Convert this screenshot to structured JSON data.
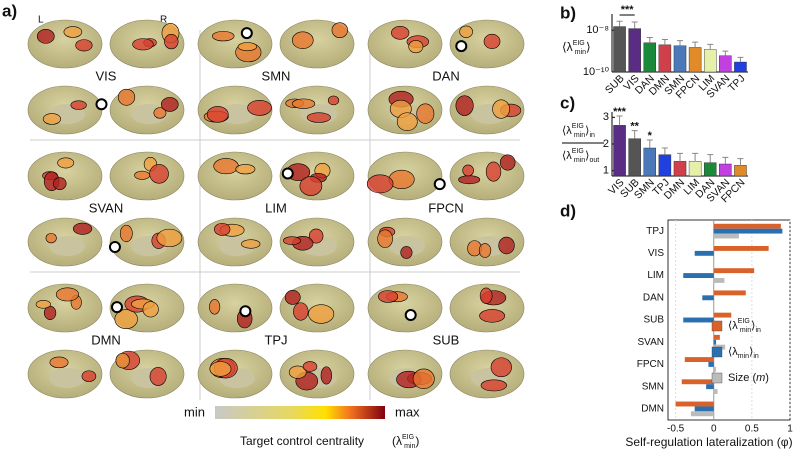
{
  "panel_labels": [
    "a)",
    "b)",
    "c)",
    "d)"
  ],
  "brain_panel": {
    "hemisphere_labels": [
      "L",
      "R"
    ],
    "networks": [
      "VIS",
      "SMN",
      "DAN",
      "SVAN",
      "LIM",
      "FPCN",
      "DMN",
      "TPJ",
      "SUB"
    ],
    "colorbar": {
      "min_label": "min",
      "max_label": "max",
      "caption": "Target control centrality",
      "caption_symbol": [
        "(λ",
        "EIG",
        "min",
        ")"
      ]
    }
  },
  "chart_data": [
    {
      "type": "bar",
      "ylabel": [
        "⟨λ",
        "EIG",
        "min",
        "⟩"
      ],
      "categories": [
        "SUB",
        "VIS",
        "DAN",
        "DMN",
        "SMN",
        "FPCN",
        "LIM",
        "SVAN",
        "TPJ"
      ],
      "values": [
        1.5e-08,
        1.2e-08,
        2.5e-09,
        2e-09,
        1.8e-09,
        1.5e-09,
        1.2e-09,
        6e-10,
        3e-10
      ],
      "errors": [
        1.2e-08,
        1.3e-08,
        2e-09,
        1.6e-09,
        1.4e-09,
        1.2e-09,
        9e-10,
        4e-10,
        2e-10
      ],
      "colors": [
        "#555555",
        "#5b2c83",
        "#1a8a3a",
        "#d0404a",
        "#4a78b8",
        "#e08a2a",
        "#e6f0a8",
        "#c040e0",
        "#2040e0"
      ],
      "log_scale": true,
      "ylim": [
        1e-10,
        6e-08
      ],
      "yticks": [
        {
          "value": 1e-10,
          "label": "10⁻¹⁰"
        },
        {
          "value": 1e-08,
          "label": "10⁻⁸"
        }
      ],
      "significance": [
        "***",
        null,
        null,
        null,
        null,
        null,
        null,
        null,
        null
      ]
    },
    {
      "type": "bar",
      "ylabel_numerator": [
        "⟨λ",
        "EIG",
        "min",
        "⟩",
        "in"
      ],
      "ylabel_denominator": [
        "⟨λ",
        "EIG",
        "min",
        "⟩",
        "out"
      ],
      "categories": [
        "VIS",
        "SUB",
        "SMN",
        "TPJ",
        "DMN",
        "LIM",
        "DAN",
        "SVAN",
        "FPCN"
      ],
      "values": [
        2.7,
        2.2,
        1.85,
        1.6,
        1.35,
        1.35,
        1.3,
        1.25,
        1.2
      ],
      "errors": [
        0.35,
        0.3,
        0.3,
        0.25,
        0.3,
        0.3,
        0.3,
        0.25,
        0.25
      ],
      "colors": [
        "#5b2c83",
        "#555555",
        "#4a78b8",
        "#2040e0",
        "#d0404a",
        "#e6f0a8",
        "#1a8a3a",
        "#c040e0",
        "#e08a2a"
      ],
      "ylim": [
        0.8,
        3.2
      ],
      "yticks": [
        1,
        2,
        3
      ],
      "significance": [
        "***",
        "**",
        "*",
        null,
        null,
        null,
        null,
        null,
        null
      ]
    },
    {
      "type": "barh",
      "xlabel": "Self-regulation lateralization (φ)",
      "categories": [
        "TPJ",
        "VIS",
        "LIM",
        "DAN",
        "SUB",
        "SVAN",
        "FPCN",
        "SMN",
        "DMN"
      ],
      "series": [
        {
          "name": [
            "⟨λ",
            "EIG",
            "min",
            "⟩",
            "in"
          ],
          "color": "#d9622b",
          "values": [
            0.88,
            0.72,
            0.53,
            0.42,
            0.23,
            0.08,
            -0.38,
            -0.42,
            -0.5
          ]
        },
        {
          "name": [
            "⟨λ",
            "min",
            "⟩",
            "in"
          ],
          "color": "#2a6fb0",
          "values": [
            0.9,
            -0.25,
            -0.4,
            -0.15,
            -0.4,
            0.03,
            -0.07,
            -0.1,
            -0.25
          ]
        },
        {
          "name": [
            "Size (",
            "m",
            ")"
          ],
          "color": "#bbbbbb",
          "values": [
            0.33,
            0,
            0.14,
            0,
            0,
            0.15,
            0.03,
            0.05,
            -0.3
          ]
        }
      ],
      "xlim": [
        -0.6,
        1
      ],
      "xticks": [
        -0.5,
        0,
        0.5,
        1
      ]
    }
  ]
}
